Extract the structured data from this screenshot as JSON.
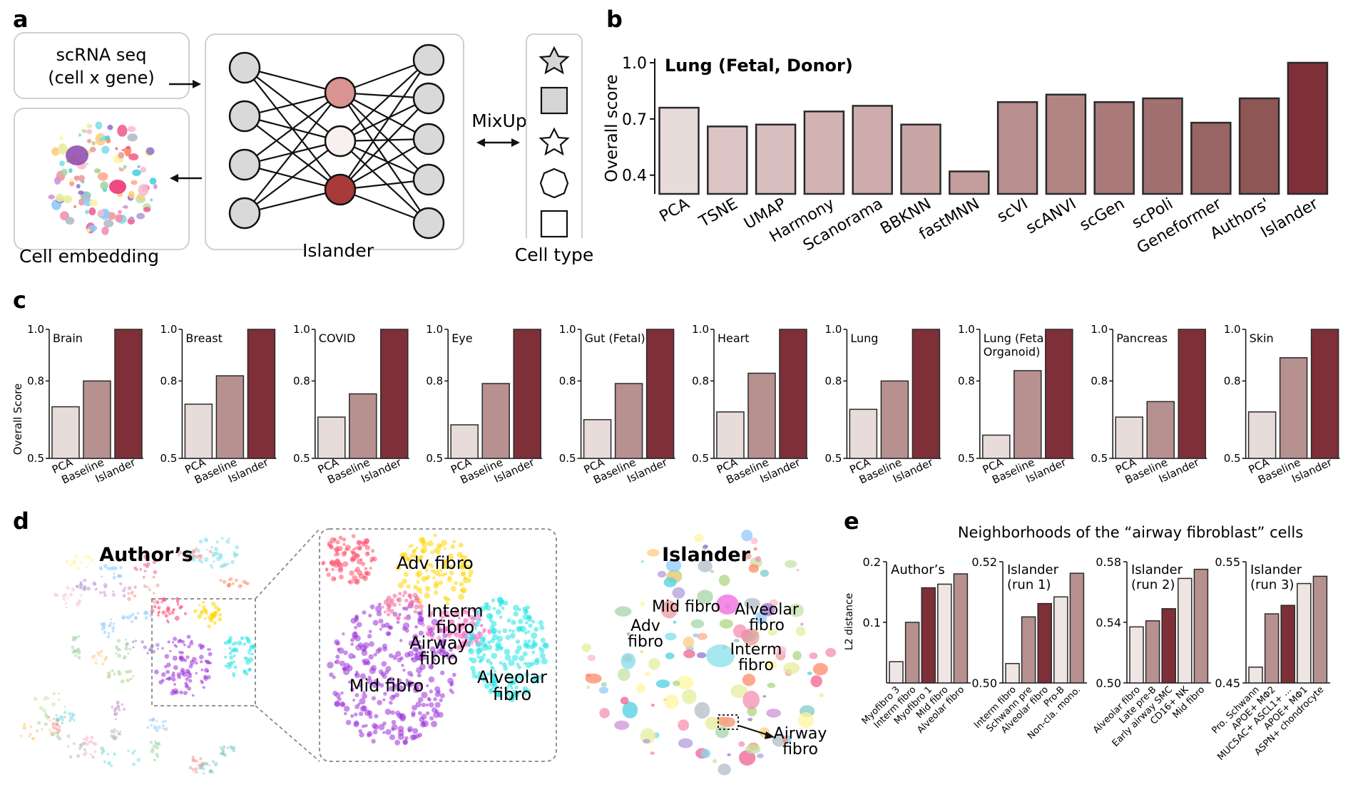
{
  "panels": {
    "a": "a",
    "b": "b",
    "c": "c",
    "d": "d",
    "e": "e"
  },
  "panel_a": {
    "input_label_1": "scRNA seq",
    "input_label_2": "(cell x gene)",
    "embedding_label": "Cell embedding",
    "model_label": "Islander",
    "mixup_label": "MixUp",
    "celltype_label": "Cell type"
  },
  "panel_b": {
    "chart_data": {
      "type": "bar",
      "title": "Lung (Fetal, Donor)",
      "ylabel": "Overall score",
      "xlabel": "",
      "ylim": [
        0.3,
        1.0
      ],
      "yticks": [
        "0.4",
        "0.7",
        "1.0"
      ],
      "categories": [
        "PCA",
        "TSNE",
        "UMAP",
        "Harmony",
        "Scanorama",
        "BBKNN",
        "fastMNN",
        "scVI",
        "scANVI",
        "scGen",
        "scPoli",
        "Geneformer",
        "Authors'",
        "Islander"
      ],
      "values": [
        0.76,
        0.66,
        0.67,
        0.74,
        0.77,
        0.67,
        0.42,
        0.79,
        0.83,
        0.79,
        0.81,
        0.68,
        0.81,
        1.0
      ],
      "colors": [
        "#e8dcda",
        "#dcc5c4",
        "#d8bebe",
        "#d3b3b2",
        "#ceacab",
        "#c8a5a4",
        "#c29d9c",
        "#b98e8e",
        "#b28585",
        "#aa7a7a",
        "#a27070",
        "#996564",
        "#8f5656",
        "#7e2f38"
      ]
    }
  },
  "panel_c": {
    "ylabel": "Overall Score",
    "yticks": [
      "0.5",
      "0.8",
      "1.0"
    ],
    "categories": [
      "PCA",
      "Baseline",
      "Islander"
    ],
    "colors": [
      "#e8dcda",
      "#b79090",
      "#7e2f38"
    ],
    "charts": [
      {
        "title": "Brain",
        "values": [
          0.7,
          0.8,
          1.0
        ]
      },
      {
        "title": "Breast",
        "values": [
          0.71,
          0.82,
          1.0
        ]
      },
      {
        "title": "COVID",
        "values": [
          0.66,
          0.75,
          1.0
        ]
      },
      {
        "title": "Eye",
        "values": [
          0.63,
          0.79,
          1.0
        ]
      },
      {
        "title": "Gut (Fetal)",
        "values": [
          0.65,
          0.79,
          1.0
        ]
      },
      {
        "title": "Heart",
        "values": [
          0.68,
          0.83,
          1.0
        ]
      },
      {
        "title": "Lung",
        "values": [
          0.69,
          0.8,
          1.0
        ]
      },
      {
        "title": "Lung (Fetal,",
        "title2": "Organoid)",
        "values": [
          0.59,
          0.84,
          1.0
        ]
      },
      {
        "title": "Pancreas",
        "values": [
          0.66,
          0.72,
          1.0
        ]
      },
      {
        "title": "Skin",
        "values": [
          0.68,
          0.89,
          1.0
        ]
      }
    ]
  },
  "panel_d": {
    "authors_label": "Author’s",
    "islander_label": "Islander",
    "zoom_labels": {
      "adv": "Adv fibro",
      "interm1": "Interm",
      "interm2": "fibro",
      "airway1": "Airway",
      "airway2": "fibro",
      "mid": "Mid fibro",
      "alveolar1": "Alveolar",
      "alveolar2": "fibro"
    },
    "islander_labels": {
      "mid": "Mid fibro",
      "adv1": "Adv",
      "adv2": "fibro",
      "alveolar1": "Alveolar",
      "alveolar2": "fibro",
      "interm1": "Interm",
      "interm2": "fibro",
      "airway1": "Airway",
      "airway2": "fibro"
    }
  },
  "panel_e": {
    "title": "Neighborhoods of the “airway fibroblast” cells",
    "ylabel": "L2 distance",
    "charts": [
      {
        "title": "Author’s",
        "title2": "",
        "yticks": [
          "0.1",
          "0.2"
        ],
        "ylim": [
          0.0,
          0.2
        ],
        "tick_values": [
          0.1,
          0.2
        ],
        "categories": [
          "Myofibro 3",
          "Interm fibro",
          "Myofibro 1",
          "Mid fibro",
          "Alveolar fibro"
        ],
        "values": [
          0.035,
          0.1,
          0.157,
          0.163,
          0.18
        ],
        "colors": [
          "#efe6e4",
          "#b79090",
          "#7e2f38",
          "#efe6e4",
          "#b79090"
        ]
      },
      {
        "title": "Islander",
        "title2": "(run 1)",
        "yticks": [
          "0.50",
          "0.52"
        ],
        "ylim": [
          0.5,
          0.52
        ],
        "tick_values": [
          0.5,
          0.52
        ],
        "categories": [
          "Interm fibro",
          "Schwann pre",
          "Alveolar fibro",
          "Pro-B",
          "Non-cla. mono."
        ],
        "values": [
          0.5032,
          0.5109,
          0.5131,
          0.5142,
          0.5181
        ],
        "colors": [
          "#efe6e4",
          "#b79090",
          "#7e2f38",
          "#efe6e4",
          "#b79090"
        ]
      },
      {
        "title": "Islander",
        "title2": "(run 2)",
        "yticks": [
          "0.50",
          "0.54",
          "0.58"
        ],
        "ylim": [
          0.5,
          0.58
        ],
        "tick_values": [
          0.5,
          0.54,
          0.58
        ],
        "categories": [
          "Alveolar fibro",
          "Late pre-B",
          "Early airway SMC",
          "CD16+ NK",
          "Mid fibro"
        ],
        "values": [
          0.537,
          0.541,
          0.549,
          0.569,
          0.575
        ],
        "colors": [
          "#efe6e4",
          "#b79090",
          "#7e2f38",
          "#efe6e4",
          "#b79090"
        ]
      },
      {
        "title": "Islander",
        "title2": "(run 3)",
        "yticks": [
          "0.45",
          "0.55"
        ],
        "ylim": [
          0.45,
          0.55
        ],
        "tick_values": [
          0.45,
          0.55
        ],
        "categories": [
          "Pro. Schwann",
          "APOE+ MΦ2",
          "MUC5AC+ ASCL1+ ...",
          "APOE+ MΦ1",
          "ASPN+ chondrocyte"
        ],
        "values": [
          0.463,
          0.507,
          0.514,
          0.532,
          0.538
        ],
        "colors": [
          "#efe6e4",
          "#b79090",
          "#7e2f38",
          "#efe6e4",
          "#b79090"
        ]
      }
    ]
  }
}
